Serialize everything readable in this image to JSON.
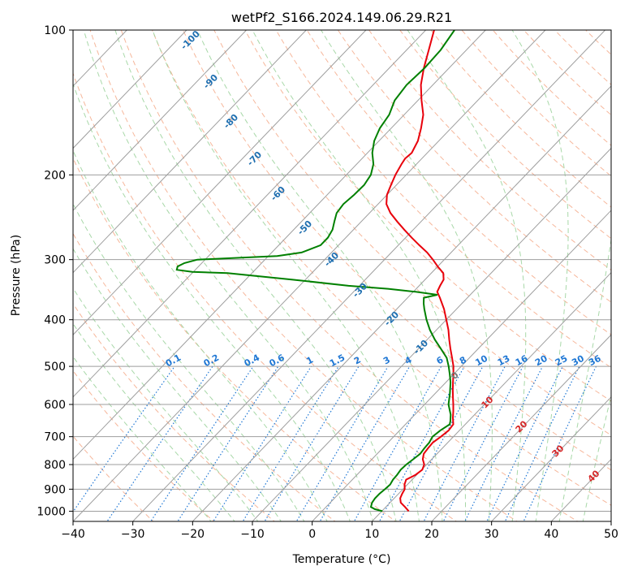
{
  "chart_data": {
    "type": "line",
    "title": "wetPf2_S166.2024.149.06.29.R21",
    "xlabel": "Temperature (°C)",
    "ylabel": "Pressure (hPa)",
    "xlim": [
      -40,
      50
    ],
    "ylim": [
      1050,
      100
    ],
    "y_scale": "log",
    "skew": "skew-T log-P",
    "x_ticks": [
      -40,
      -30,
      -20,
      -10,
      0,
      10,
      20,
      30,
      40,
      50
    ],
    "x_tick_labels": [
      "−40",
      "−30",
      "−20",
      "−10",
      "0",
      "10",
      "20",
      "30",
      "40",
      "50"
    ],
    "y_ticks": [
      1000,
      900,
      800,
      700,
      600,
      500,
      400,
      300,
      200,
      100
    ],
    "y_tick_labels": [
      "1000",
      "900",
      "800",
      "700",
      "600",
      "500",
      "400",
      "300",
      "200",
      "100"
    ],
    "grid": true,
    "series": [
      {
        "color": "#e8000b",
        "values": [
          [
            1000,
            14.5
          ],
          [
            980,
            13.2
          ],
          [
            960,
            11.8
          ],
          [
            940,
            11.0
          ],
          [
            920,
            10.6
          ],
          [
            900,
            10.3
          ],
          [
            880,
            9.5
          ],
          [
            860,
            9.0
          ],
          [
            840,
            9.8
          ],
          [
            820,
            10.1
          ],
          [
            800,
            9.6
          ],
          [
            780,
            8.5
          ],
          [
            760,
            7.8
          ],
          [
            740,
            7.6
          ],
          [
            720,
            7.5
          ],
          [
            700,
            7.9
          ],
          [
            680,
            8.2
          ],
          [
            660,
            8.0
          ],
          [
            640,
            6.9
          ],
          [
            620,
            5.9
          ],
          [
            600,
            4.8
          ],
          [
            580,
            3.6
          ],
          [
            560,
            2.4
          ],
          [
            540,
            1.2
          ],
          [
            520,
            0.0
          ],
          [
            500,
            -1.3
          ],
          [
            480,
            -2.9
          ],
          [
            460,
            -4.6
          ],
          [
            440,
            -6.3
          ],
          [
            420,
            -8.0
          ],
          [
            400,
            -10.0
          ],
          [
            380,
            -12.1
          ],
          [
            360,
            -14.6
          ],
          [
            350,
            -16.0
          ],
          [
            340,
            -16.5
          ],
          [
            330,
            -16.9
          ],
          [
            320,
            -18.0
          ],
          [
            310,
            -20.0
          ],
          [
            300,
            -21.9
          ],
          [
            290,
            -24.0
          ],
          [
            280,
            -26.5
          ],
          [
            270,
            -29.0
          ],
          [
            260,
            -31.5
          ],
          [
            250,
            -34.0
          ],
          [
            240,
            -36.5
          ],
          [
            230,
            -38.6
          ],
          [
            220,
            -40.0
          ],
          [
            210,
            -40.9
          ],
          [
            200,
            -41.8
          ],
          [
            190,
            -42.5
          ],
          [
            185,
            -42.8
          ],
          [
            180,
            -42.6
          ],
          [
            170,
            -43.5
          ],
          [
            160,
            -45.0
          ],
          [
            150,
            -46.8
          ],
          [
            140,
            -49.4
          ],
          [
            130,
            -52.0
          ],
          [
            120,
            -54.2
          ],
          [
            110,
            -56.3
          ],
          [
            100,
            -58.6
          ]
        ]
      },
      {
        "color": "#008000",
        "values": [
          [
            1000,
            10.1
          ],
          [
            990,
            8.5
          ],
          [
            980,
            7.5
          ],
          [
            960,
            7.0
          ],
          [
            940,
            6.8
          ],
          [
            920,
            6.8
          ],
          [
            900,
            7.0
          ],
          [
            880,
            7.1
          ],
          [
            860,
            6.8
          ],
          [
            840,
            6.7
          ],
          [
            820,
            6.5
          ],
          [
            800,
            6.6
          ],
          [
            780,
            6.9
          ],
          [
            760,
            7.2
          ],
          [
            740,
            7.0
          ],
          [
            720,
            6.9
          ],
          [
            700,
            6.5
          ],
          [
            680,
            6.8
          ],
          [
            660,
            7.4
          ],
          [
            650,
            7.0
          ],
          [
            630,
            6.0
          ],
          [
            600,
            4.0
          ],
          [
            570,
            2.5
          ],
          [
            540,
            0.8
          ],
          [
            520,
            -0.6
          ],
          [
            500,
            -2.1
          ],
          [
            480,
            -3.8
          ],
          [
            460,
            -6.2
          ],
          [
            440,
            -8.7
          ],
          [
            420,
            -11.1
          ],
          [
            400,
            -13.3
          ],
          [
            380,
            -15.4
          ],
          [
            370,
            -16.4
          ],
          [
            360,
            -17.3
          ],
          [
            355,
            -15.5
          ],
          [
            350,
            -19.6
          ],
          [
            345,
            -24.7
          ],
          [
            340,
            -31.8
          ],
          [
            330,
            -42.3
          ],
          [
            320,
            -54.1
          ],
          [
            318,
            -60.2
          ],
          [
            315,
            -63.1
          ],
          [
            310,
            -63.5
          ],
          [
            305,
            -62.9
          ],
          [
            300,
            -61.3
          ],
          [
            295,
            -48.5
          ],
          [
            290,
            -45.0
          ],
          [
            280,
            -43.0
          ],
          [
            270,
            -43.0
          ],
          [
            260,
            -43.5
          ],
          [
            250,
            -44.5
          ],
          [
            240,
            -45.5
          ],
          [
            230,
            -45.8
          ],
          [
            220,
            -45.5
          ],
          [
            210,
            -45.4
          ],
          [
            200,
            -45.9
          ],
          [
            190,
            -47.2
          ],
          [
            180,
            -49.2
          ],
          [
            170,
            -50.8
          ],
          [
            160,
            -51.9
          ],
          [
            150,
            -52.5
          ],
          [
            140,
            -53.9
          ],
          [
            130,
            -54.4
          ],
          [
            120,
            -54.1
          ],
          [
            110,
            -54.3
          ],
          [
            100,
            -55.2
          ]
        ]
      }
    ],
    "dry_adiabat_labels": [
      "-100",
      "-90",
      "-80",
      "-70",
      "-60",
      "-50",
      "-40",
      "-30",
      "-20",
      "-10"
    ],
    "mixing_ratio_labels": [
      "0.1",
      "0.2",
      "0.4",
      "0.6",
      "1",
      "1.5",
      "2",
      "3",
      "4",
      "6",
      "8",
      "10",
      "13",
      "16",
      "20",
      "25",
      "30",
      "36"
    ],
    "moist_adiabat_labels": [
      "0",
      "10",
      "20",
      "30",
      "40"
    ],
    "colors": {
      "temperature": "#e8000b",
      "dewpoint": "#008000",
      "isotherm": "#9e9e9e",
      "isobar": "#9e9e9e",
      "dry_adiabat": "#f4a582",
      "moist_adiabat": "#9fd49f",
      "mixing_ratio": "#1f77d4",
      "dry_label": "#1f6fb0",
      "moist_label": "#d62728",
      "zero_label": "#777777"
    }
  }
}
